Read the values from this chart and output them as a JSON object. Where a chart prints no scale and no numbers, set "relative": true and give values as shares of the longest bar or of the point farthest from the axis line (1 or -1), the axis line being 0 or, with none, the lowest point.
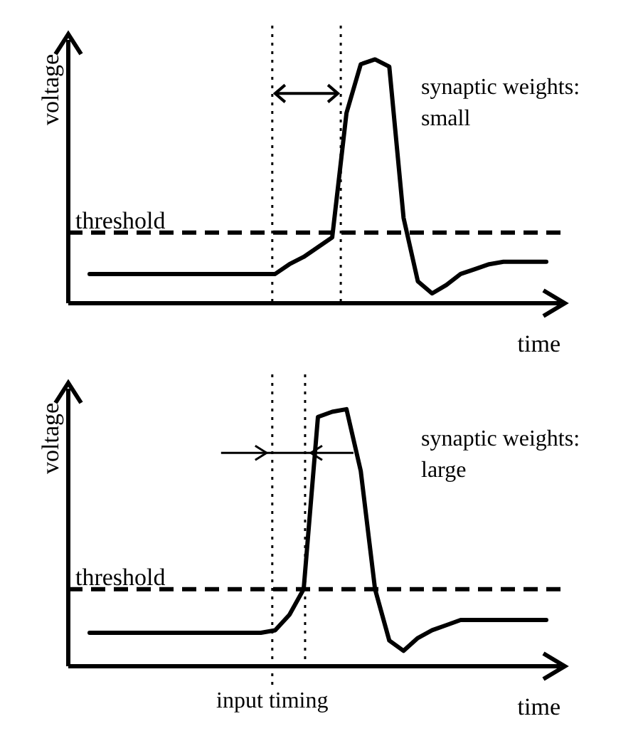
{
  "chart_data": [
    {
      "type": "line",
      "relative": true,
      "xlabel": "time",
      "ylabel": "voltage",
      "categories": [
        null,
        null,
        null,
        null,
        null,
        null,
        null,
        null,
        null,
        null,
        null,
        null,
        null,
        null,
        null,
        null,
        null,
        null,
        null,
        null,
        null,
        null,
        null,
        null,
        null,
        null,
        null,
        null,
        null,
        null,
        null,
        null,
        null
      ],
      "series": [
        {
          "color": "#000000",
          "values": [
            0.12,
            0.12,
            0.12,
            0.12,
            0.12,
            0.12,
            0.12,
            0.12,
            0.12,
            0.12,
            0.12,
            0.12,
            0.12,
            0.12,
            0.16,
            0.19,
            0.23,
            0.27,
            0.78,
            0.98,
            1,
            0.97,
            0.35,
            0.09,
            0.04,
            0.075,
            0.12,
            0.14,
            0.16,
            0.17,
            0.17,
            0.17,
            0.17
          ]
        }
      ],
      "ref_lines": [
        {
          "axis": "y",
          "value": 0.29,
          "label": "threshold",
          "color": "#000000",
          "line_style": "dashed"
        }
      ],
      "annotations": [
        "synaptic weights: small"
      ]
    },
    {
      "type": "line",
      "relative": true,
      "xlabel": "time",
      "ylabel": "voltage",
      "categories": [
        null,
        null,
        null,
        null,
        null,
        null,
        null,
        null,
        null,
        null,
        null,
        null,
        null,
        null,
        null,
        null,
        null,
        null,
        null,
        null,
        null,
        null,
        null,
        null,
        null,
        null,
        null,
        null,
        null,
        null,
        null,
        null,
        null
      ],
      "series": [
        {
          "color": "#000000",
          "values": [
            0.13,
            0.13,
            0.13,
            0.13,
            0.13,
            0.13,
            0.13,
            0.13,
            0.13,
            0.13,
            0.13,
            0.13,
            0.13,
            0.14,
            0.2,
            0.3,
            0.97,
            0.99,
            1,
            0.76,
            0.3,
            0.1,
            0.06,
            0.11,
            0.14,
            0.16,
            0.18,
            0.18,
            0.18,
            0.18,
            0.18,
            0.18,
            0.18
          ]
        }
      ],
      "ref_lines": [
        {
          "axis": "y",
          "value": 0.3,
          "label": "threshold",
          "color": "#000000",
          "line_style": "dashed"
        }
      ],
      "annotations": [
        "synaptic weights: large",
        "input timing"
      ]
    }
  ]
}
